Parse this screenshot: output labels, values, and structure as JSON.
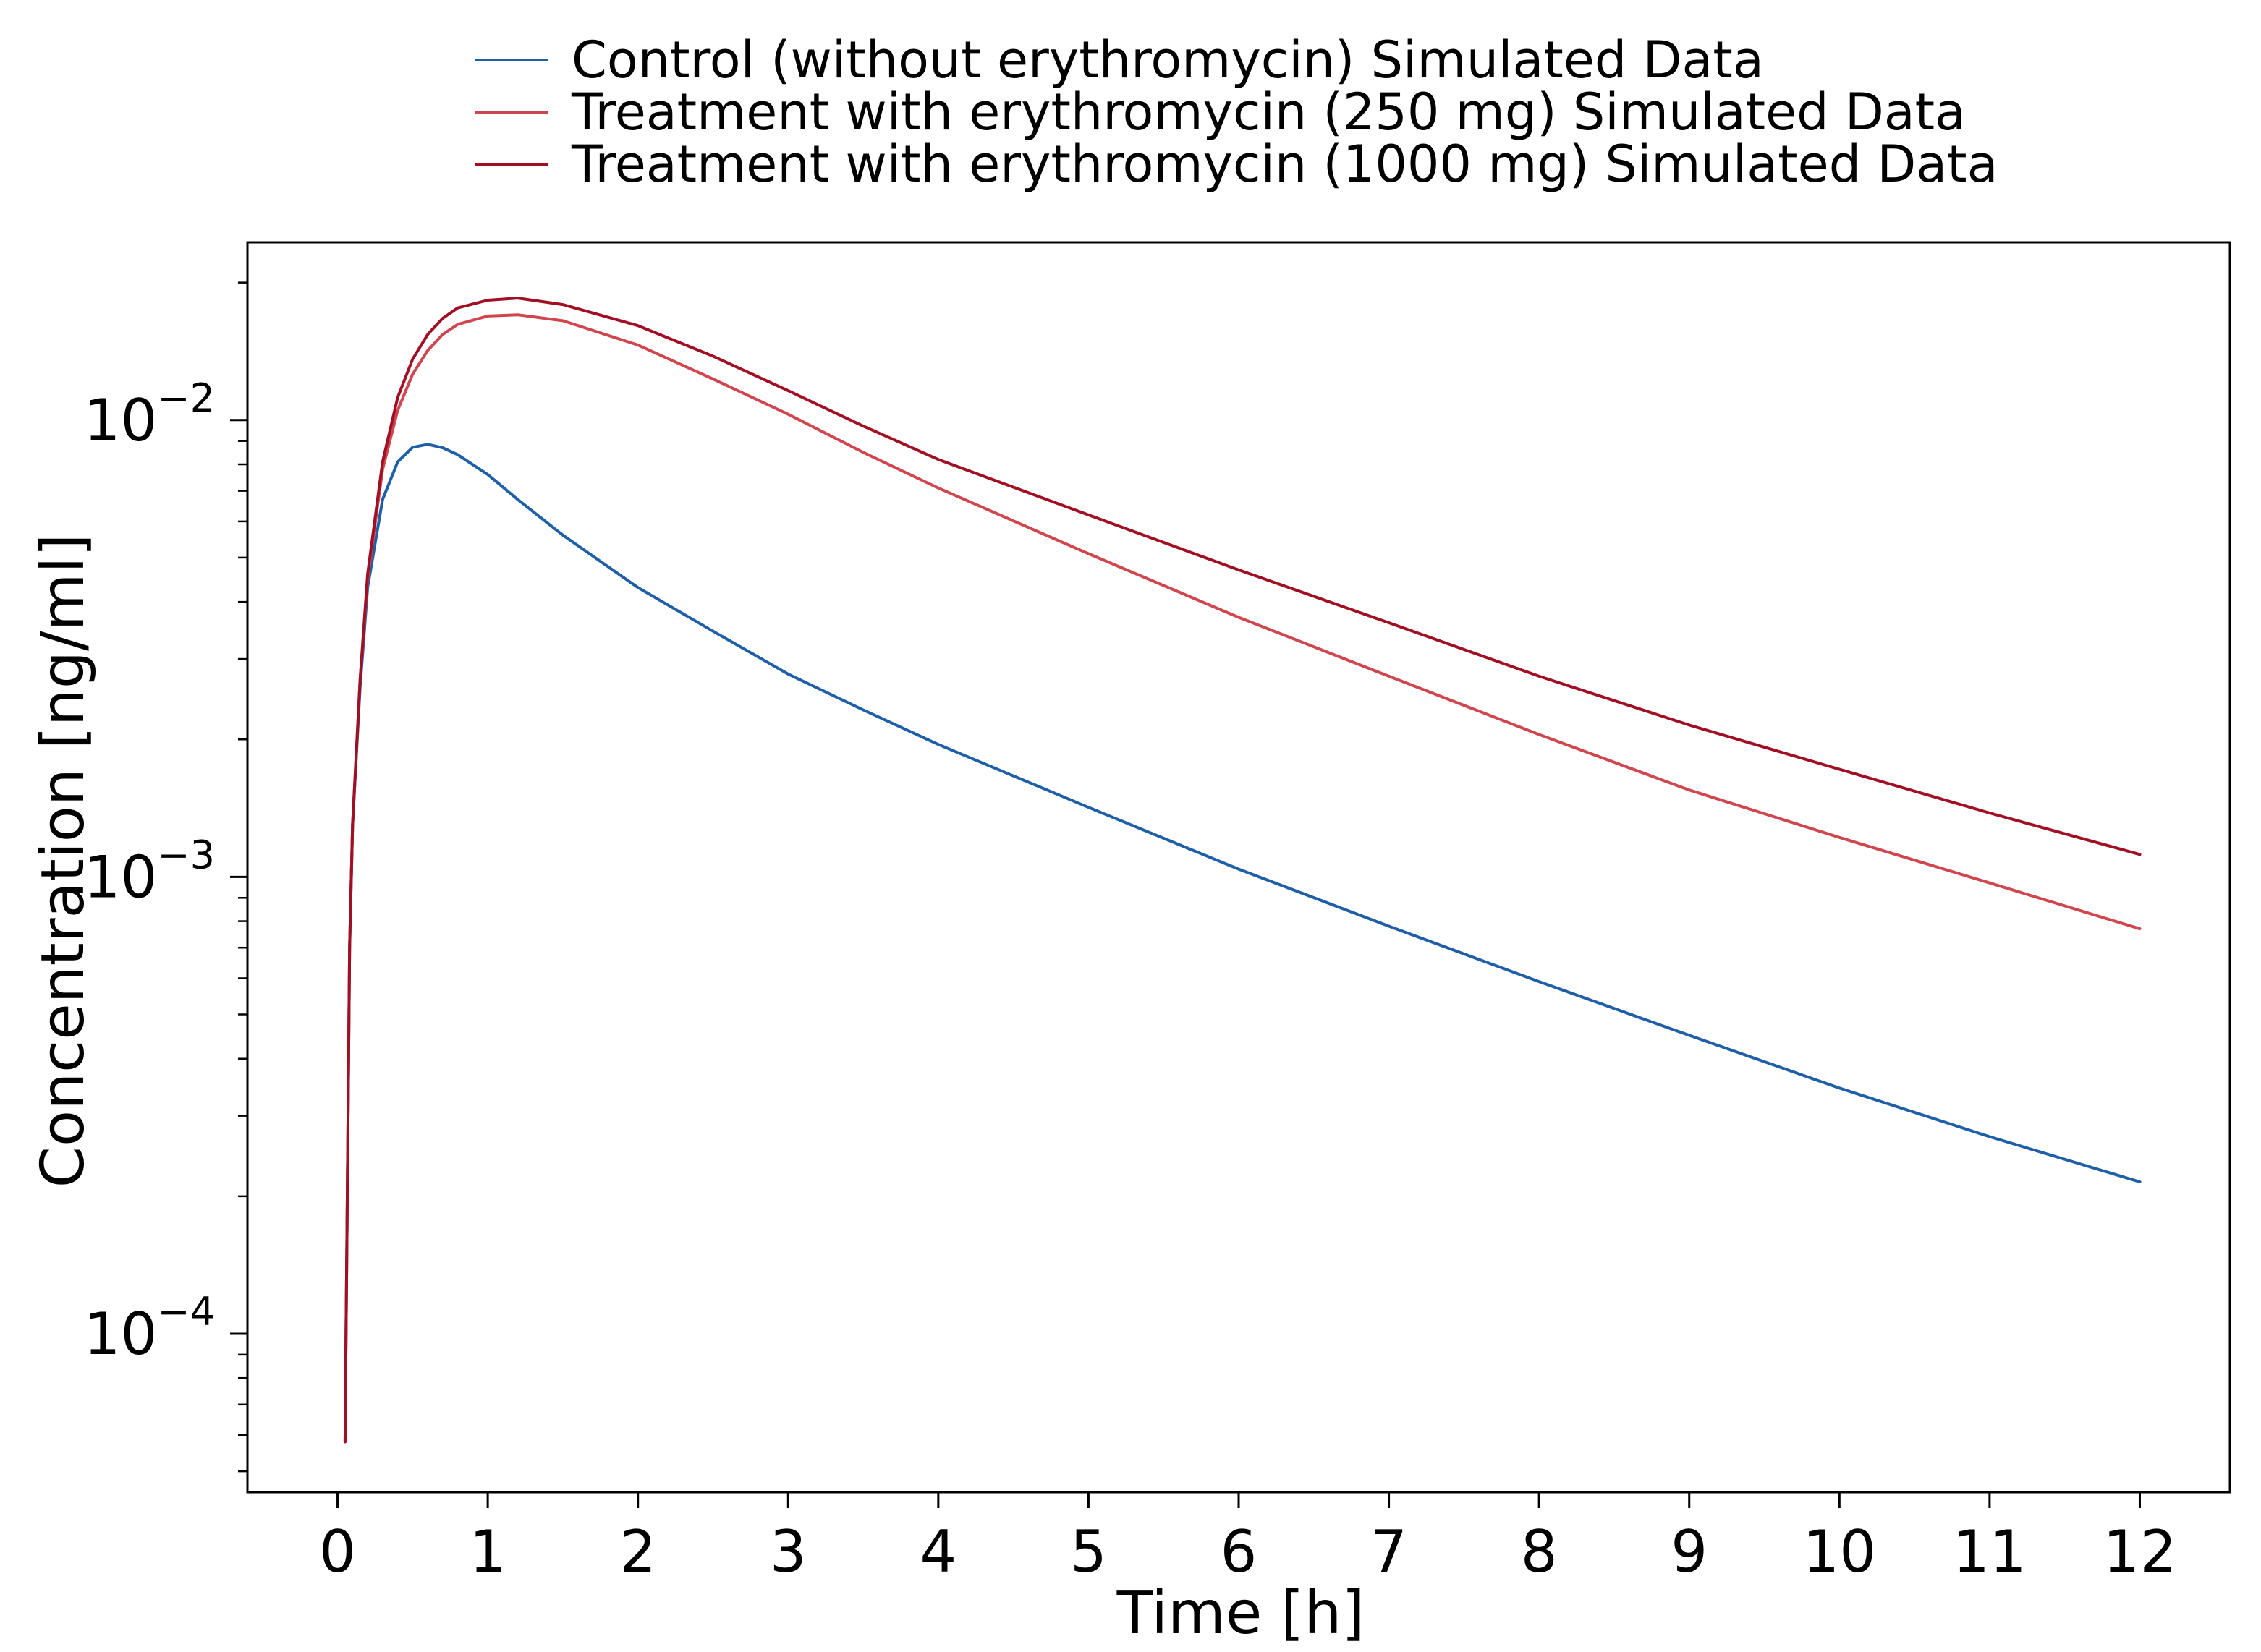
{
  "chart_data": {
    "type": "line",
    "title": "",
    "xlabel": "Time [h]",
    "ylabel": "Concentration [ng/ml]",
    "xlim": [
      -0.6,
      12.6
    ],
    "ylim": [
      4.5e-05,
      0.0245
    ],
    "yscale": "log",
    "grid": false,
    "legend_position": "top-center",
    "x_ticks": [
      0,
      1,
      2,
      3,
      4,
      5,
      6,
      7,
      8,
      9,
      10,
      11,
      12
    ],
    "x_tick_labels": [
      "0",
      "1",
      "2",
      "3",
      "4",
      "5",
      "6",
      "7",
      "8",
      "9",
      "10",
      "11",
      "12"
    ],
    "y_ticks_major": [
      0.0001,
      0.001,
      0.01
    ],
    "y_tick_labels": [
      {
        "base": "10",
        "exp": "−4"
      },
      {
        "base": "10",
        "exp": "−3"
      },
      {
        "base": "10",
        "exp": "−2"
      }
    ],
    "x": [
      0.05,
      0.08,
      0.1,
      0.15,
      0.2,
      0.3,
      0.4,
      0.5,
      0.6,
      0.7,
      0.8,
      1.0,
      1.2,
      1.5,
      2.0,
      2.5,
      3.0,
      3.5,
      4.0,
      5.0,
      6.0,
      7.0,
      8.0,
      9.0,
      10.0,
      11.0,
      12.0
    ],
    "series": [
      {
        "name": "Control (without erythromycin) Simulated Data",
        "color": "#1f5fa8",
        "values": [
          5.8e-05,
          0.0007,
          0.0013,
          0.0026,
          0.0043,
          0.0067,
          0.0081,
          0.00872,
          0.00885,
          0.0087,
          0.0084,
          0.0076,
          0.0067,
          0.0056,
          0.0043,
          0.00345,
          0.00278,
          0.00232,
          0.00195,
          0.00142,
          0.00104,
          0.00078,
          0.00059,
          0.00045,
          0.000345,
          0.00027,
          0.000215
        ]
      },
      {
        "name": "Treatment with erythromycin (250 mg) Simulated Data",
        "color": "#d0464e",
        "values": [
          5.8e-05,
          0.0007,
          0.0013,
          0.0027,
          0.0045,
          0.0078,
          0.0105,
          0.0126,
          0.0142,
          0.0154,
          0.0162,
          0.0169,
          0.017,
          0.0165,
          0.0146,
          0.0123,
          0.0103,
          0.0085,
          0.0071,
          0.0051,
          0.0037,
          0.00275,
          0.00205,
          0.00155,
          0.00122,
          0.00097,
          0.00077
        ]
      },
      {
        "name": "Treatment with erythromycin (1000 mg) Simulated Data",
        "color": "#a10f24",
        "values": [
          5.8e-05,
          0.0007,
          0.0013,
          0.0027,
          0.0046,
          0.0081,
          0.0112,
          0.0136,
          0.0154,
          0.0167,
          0.0176,
          0.0183,
          0.0185,
          0.0179,
          0.0161,
          0.0138,
          0.0116,
          0.0097,
          0.0082,
          0.0062,
          0.0047,
          0.0036,
          0.00275,
          0.00215,
          0.00172,
          0.00138,
          0.00112
        ]
      }
    ]
  }
}
